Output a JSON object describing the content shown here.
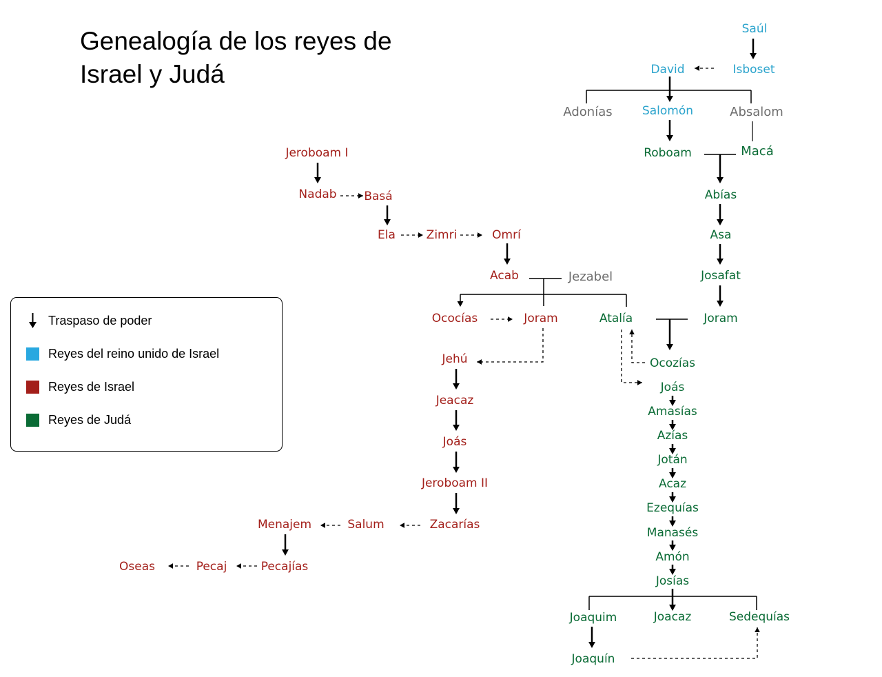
{
  "title_line1": "Genealogía de los reyes de",
  "title_line2": "Israel y Judá",
  "colors": {
    "united": "#2aa3cc",
    "israel": "#a31f1a",
    "juda": "#0a6b35",
    "other": "#6e6e6e"
  },
  "legend": {
    "arrow_label": "Traspaso de poder",
    "united_label": "Reyes del reino unido de Israel",
    "israel_label": "Reyes de Israel",
    "juda_label": "Reyes de Judá"
  },
  "nodes": {
    "saul": "Saúl",
    "isboset": "Isboset",
    "david": "David",
    "adonias": "Adonías",
    "salomon": "Salomón",
    "absalom": "Absalom",
    "roboam": "Roboam",
    "maca": "Macá",
    "abias": "Abías",
    "asa": "Asa",
    "josafat": "Josafat",
    "joram_juda": "Joram",
    "ocozias_juda": "Ocozías",
    "atalia": "Atalía",
    "joas_juda": "Joás",
    "amasias": "Amasías",
    "azias": "Azías",
    "jotan": "Jotán",
    "acaz": "Acaz",
    "ezequias": "Ezequías",
    "manases": "Manasés",
    "amon": "Amón",
    "josias": "Josías",
    "joaquim": "Joaquim",
    "joacaz": "Joacaz",
    "sedequias": "Sedequías",
    "joaquin": "Joaquín",
    "jeroboam1": "Jeroboam I",
    "nadab": "Nadab",
    "basa": "Basá",
    "ela": "Ela",
    "zimri": "Zimri",
    "omri": "Omrí",
    "acab": "Acab",
    "jezabel": "Jezabel",
    "ococias_israel": "Ococías",
    "joram_israel": "Joram",
    "jehu": "Jehú",
    "jeacaz": "Jeacaz",
    "joas_israel": "Joás",
    "jeroboam2": "Jeroboam II",
    "zacarias": "Zacarías",
    "salum": "Salum",
    "menajem": "Menajem",
    "pecajias": "Pecajías",
    "pecaj": "Pecaj",
    "oseas": "Oseas"
  }
}
